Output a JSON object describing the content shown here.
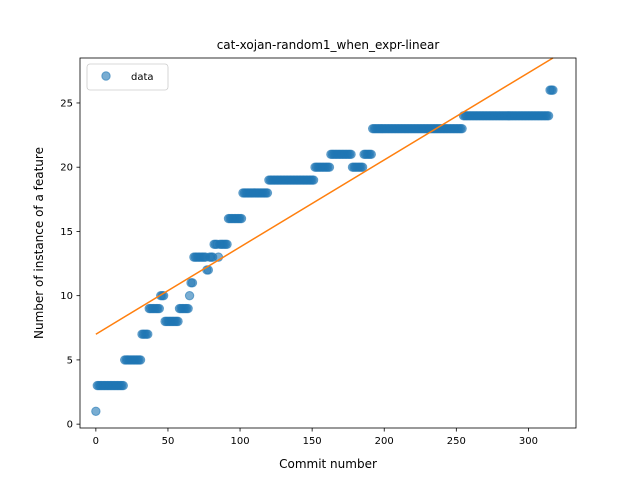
{
  "chart_data": {
    "type": "scatter",
    "title": "cat-xojan-random1_when_expr-linear",
    "xlabel": "Commit number",
    "ylabel": "Number of instance of a feature",
    "xlim": [
      -11,
      333
    ],
    "ylim": [
      -0.3,
      28.5
    ],
    "xticks": [
      0,
      50,
      100,
      150,
      200,
      250,
      300
    ],
    "yticks": [
      0,
      5,
      10,
      15,
      20,
      25
    ],
    "grid": false,
    "legend_placement": "top-left",
    "colors": {
      "data": "#1f77b4",
      "fit": "#ff7f0e"
    },
    "series": [
      {
        "name": "data",
        "kind": "scatter",
        "runs": [
          {
            "x0": 0,
            "x1": 0,
            "y": 1
          },
          {
            "x0": 1,
            "x1": 19,
            "y": 3
          },
          {
            "x0": 20,
            "x1": 31,
            "y": 5
          },
          {
            "x0": 32,
            "x1": 36,
            "y": 7
          },
          {
            "x0": 37,
            "x1": 44,
            "y": 9
          },
          {
            "x0": 45,
            "x1": 47,
            "y": 10
          },
          {
            "x0": 48,
            "x1": 57,
            "y": 8
          },
          {
            "x0": 58,
            "x1": 64,
            "y": 9
          },
          {
            "x0": 65,
            "x1": 65,
            "y": 10
          },
          {
            "x0": 66,
            "x1": 67,
            "y": 11
          },
          {
            "x0": 68,
            "x1": 76,
            "y": 13
          },
          {
            "x0": 77,
            "x1": 78,
            "y": 12
          },
          {
            "x0": 79,
            "x1": 81,
            "y": 13
          },
          {
            "x0": 82,
            "x1": 84,
            "y": 14
          },
          {
            "x0": 85,
            "x1": 85,
            "y": 13
          },
          {
            "x0": 86,
            "x1": 91,
            "y": 14
          },
          {
            "x0": 92,
            "x1": 101,
            "y": 16
          },
          {
            "x0": 102,
            "x1": 119,
            "y": 18
          },
          {
            "x0": 120,
            "x1": 151,
            "y": 19
          },
          {
            "x0": 152,
            "x1": 162,
            "y": 20
          },
          {
            "x0": 163,
            "x1": 177,
            "y": 21
          },
          {
            "x0": 178,
            "x1": 185,
            "y": 20
          },
          {
            "x0": 186,
            "x1": 191,
            "y": 21
          },
          {
            "x0": 192,
            "x1": 254,
            "y": 23
          },
          {
            "x0": 255,
            "x1": 314,
            "y": 24
          },
          {
            "x0": 315,
            "x1": 317,
            "y": 26
          }
        ]
      },
      {
        "kind": "line",
        "x": [
          0,
          317
        ],
        "y": [
          7.0,
          28.5
        ]
      }
    ]
  }
}
